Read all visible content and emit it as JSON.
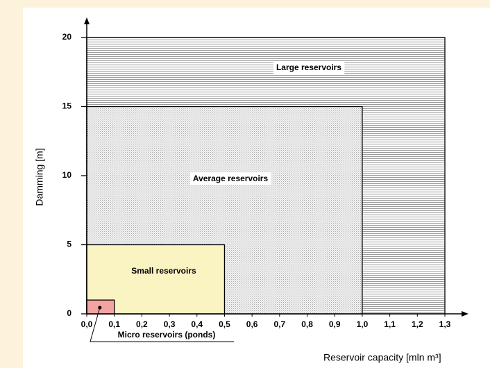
{
  "chart_data": {
    "type": "nested-rectangles",
    "x_label": "Reservoir capacity  [mln m³]",
    "y_label": "Damming  [m]",
    "xlim": [
      0,
      1.3
    ],
    "ylim": [
      0,
      20
    ],
    "xticks": [
      {
        "value": 0,
        "label": "0,0"
      },
      {
        "value": 0.1,
        "label": "0,1"
      },
      {
        "value": 0.2,
        "label": "0,2"
      },
      {
        "value": 0.3,
        "label": "0,3"
      },
      {
        "value": 0.4,
        "label": "0,4"
      },
      {
        "value": 0.5,
        "label": "0,5"
      },
      {
        "value": 0.6,
        "label": "0,6"
      },
      {
        "value": 0.7,
        "label": "0,7"
      },
      {
        "value": 0.8,
        "label": "0,8"
      },
      {
        "value": 0.9,
        "label": "0,9"
      },
      {
        "value": 1.0,
        "label": "1,0"
      },
      {
        "value": 1.1,
        "label": "1,1"
      },
      {
        "value": 1.2,
        "label": "1,2"
      },
      {
        "value": 1.3,
        "label": "1,3"
      }
    ],
    "yticks": [
      0,
      5,
      10,
      15,
      20
    ],
    "regions": [
      {
        "name": "Large reservoirs",
        "x_max": 1.3,
        "y_max": 20,
        "fill": "hatch"
      },
      {
        "name": "Average reservoirs",
        "x_max": 1.0,
        "y_max": 15,
        "fill": "dots"
      },
      {
        "name": "Small reservoirs",
        "x_max": 0.5,
        "y_max": 5,
        "fill": "#faf3c2"
      },
      {
        "name": "Micro reservoirs (ponds)",
        "x_max": 0.1,
        "y_max": 1,
        "fill": "#f4a3a3"
      }
    ]
  }
}
